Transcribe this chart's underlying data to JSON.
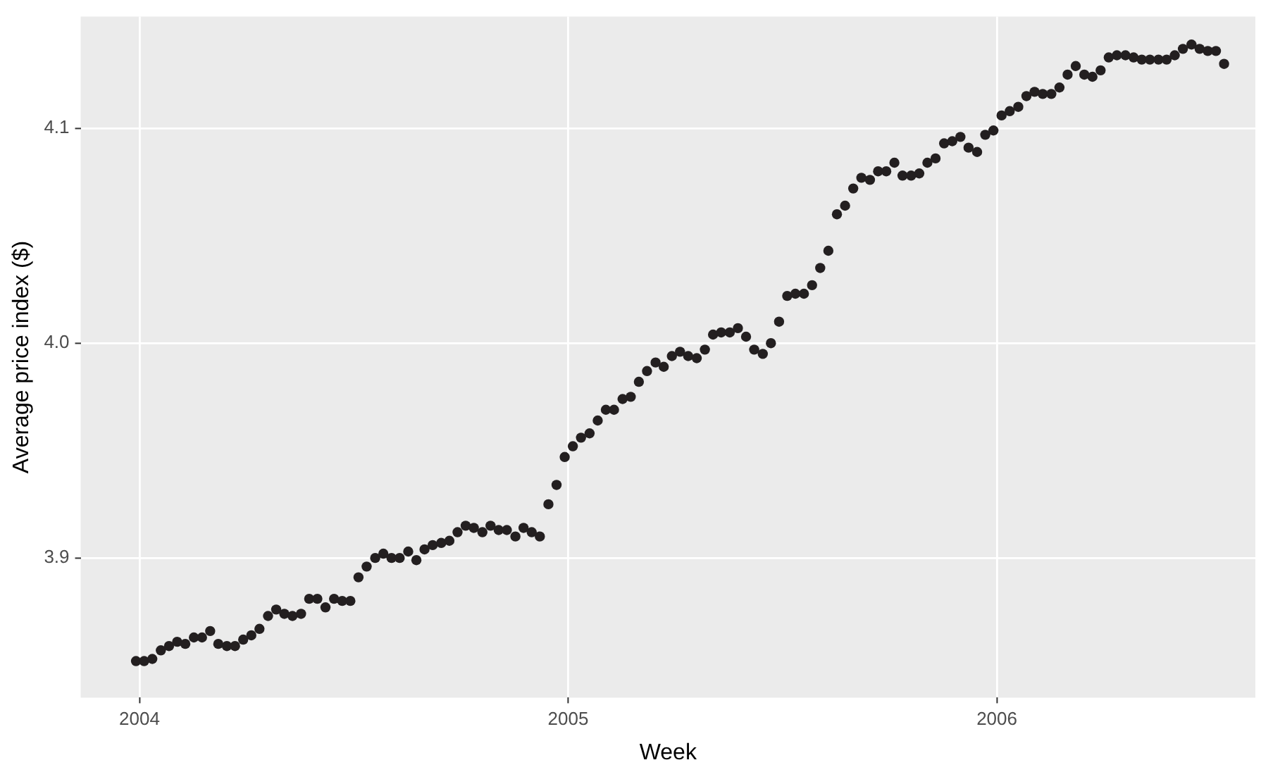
{
  "chart_data": {
    "type": "scatter",
    "xlabel": "Week",
    "ylabel": "Average price index ($)",
    "color": "#231f20",
    "marker": "circle",
    "grid": true,
    "xlim": [
      2003.863,
      2006.603
    ],
    "xticks": [
      2004,
      2005,
      2006
    ],
    "ylim": [
      3.835,
      4.152
    ],
    "yticks": [
      3.9,
      {
        "value": 4,
        "label": "4.0"
      },
      4.1
    ],
    "x": [
      2003.992,
      2004.011,
      2004.03,
      2004.05,
      2004.069,
      2004.088,
      2004.107,
      2004.127,
      2004.146,
      2004.165,
      2004.184,
      2004.204,
      2004.223,
      2004.242,
      2004.261,
      2004.28,
      2004.3,
      2004.319,
      2004.338,
      2004.357,
      2004.377,
      2004.396,
      2004.415,
      2004.434,
      2004.454,
      2004.473,
      2004.492,
      2004.511,
      2004.53,
      2004.55,
      2004.569,
      2004.588,
      2004.607,
      2004.627,
      2004.646,
      2004.665,
      2004.684,
      2004.704,
      2004.723,
      2004.742,
      2004.761,
      2004.78,
      2004.8,
      2004.819,
      2004.838,
      2004.857,
      2004.877,
      2004.896,
      2004.915,
      2004.934,
      2004.954,
      2004.973,
      2004.992,
      2005.011,
      2005.03,
      2005.05,
      2005.069,
      2005.088,
      2005.107,
      2005.127,
      2005.146,
      2005.165,
      2005.184,
      2005.204,
      2005.223,
      2005.242,
      2005.261,
      2005.28,
      2005.3,
      2005.319,
      2005.338,
      2005.357,
      2005.377,
      2005.396,
      2005.415,
      2005.434,
      2005.454,
      2005.473,
      2005.492,
      2005.511,
      2005.53,
      2005.55,
      2005.569,
      2005.588,
      2005.607,
      2005.627,
      2005.646,
      2005.665,
      2005.684,
      2005.704,
      2005.723,
      2005.742,
      2005.761,
      2005.78,
      2005.8,
      2005.819,
      2005.838,
      2005.857,
      2005.877,
      2005.896,
      2005.915,
      2005.934,
      2005.954,
      2005.973,
      2005.992,
      2006.011,
      2006.03,
      2006.05,
      2006.069,
      2006.088,
      2006.107,
      2006.127,
      2006.146,
      2006.165,
      2006.184,
      2006.204,
      2006.223,
      2006.242,
      2006.261,
      2006.28,
      2006.3,
      2006.319,
      2006.338,
      2006.357,
      2006.377,
      2006.396,
      2006.415,
      2006.434,
      2006.454,
      2006.473,
      2006.492,
      2006.511,
      2006.53
    ],
    "values": [
      3.852,
      3.852,
      3.853,
      3.857,
      3.859,
      3.861,
      3.86,
      3.863,
      3.863,
      3.866,
      3.86,
      3.859,
      3.859,
      3.862,
      3.864,
      3.867,
      3.873,
      3.876,
      3.874,
      3.873,
      3.874,
      3.881,
      3.881,
      3.877,
      3.881,
      3.88,
      3.88,
      3.891,
      3.896,
      3.9,
      3.902,
      3.9,
      3.9,
      3.903,
      3.899,
      3.904,
      3.906,
      3.907,
      3.908,
      3.912,
      3.915,
      3.914,
      3.912,
      3.915,
      3.913,
      3.913,
      3.91,
      3.914,
      3.912,
      3.91,
      3.925,
      3.934,
      3.947,
      3.952,
      3.956,
      3.958,
      3.964,
      3.969,
      3.969,
      3.974,
      3.975,
      3.982,
      3.987,
      3.991,
      3.989,
      3.994,
      3.996,
      3.994,
      3.993,
      3.997,
      4.004,
      4.005,
      4.005,
      4.007,
      4.003,
      3.997,
      3.995,
      4.0,
      4.01,
      4.022,
      4.023,
      4.023,
      4.027,
      4.035,
      4.043,
      4.06,
      4.064,
      4.072,
      4.077,
      4.076,
      4.08,
      4.08,
      4.084,
      4.078,
      4.078,
      4.079,
      4.084,
      4.086,
      4.093,
      4.094,
      4.096,
      4.091,
      4.089,
      4.097,
      4.099,
      4.106,
      4.108,
      4.11,
      4.115,
      4.117,
      4.116,
      4.116,
      4.119,
      4.125,
      4.129,
      4.125,
      4.124,
      4.127,
      4.133,
      4.134,
      4.134,
      4.133,
      4.132,
      4.132,
      4.132,
      4.132,
      4.134,
      4.137,
      4.139,
      4.137,
      4.136,
      4.136,
      4.13
    ]
  }
}
